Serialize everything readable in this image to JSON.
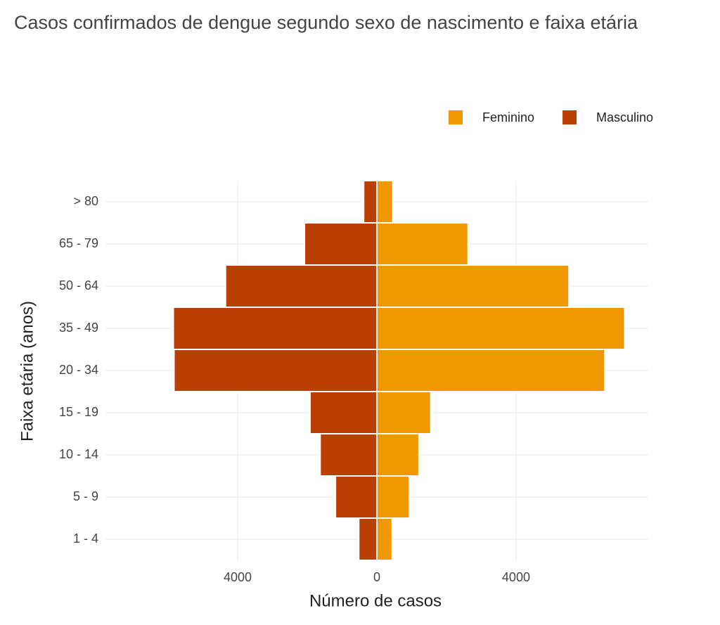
{
  "chart_data": {
    "type": "pyramid",
    "title": "Casos confirmados de dengue segundo sexo de nascimento e faixa etária",
    "x_label": "Número de casos",
    "y_label": "Faixa etária (anos)",
    "categories": [
      "1 - 4",
      "5 - 9",
      "10 - 14",
      "15 - 19",
      "20 - 34",
      "35 - 49",
      "50 - 64",
      "65 - 79",
      "> 80"
    ],
    "series": [
      {
        "name": "Feminino",
        "color": "#ef9800",
        "values": [
          440,
          930,
          1210,
          1550,
          6550,
          7120,
          5520,
          2620,
          460
        ]
      },
      {
        "name": "Masculino",
        "color": "#ba3f02",
        "values": [
          -520,
          -1190,
          -1630,
          -1920,
          -5830,
          -5850,
          -4350,
          -2080,
          -380
        ]
      }
    ],
    "xlim": [
      -7800,
      7800
    ],
    "xticks": [
      {
        "value": -4000,
        "label": "4000"
      },
      0,
      4000
    ],
    "grid": true,
    "legend": "top-right"
  }
}
